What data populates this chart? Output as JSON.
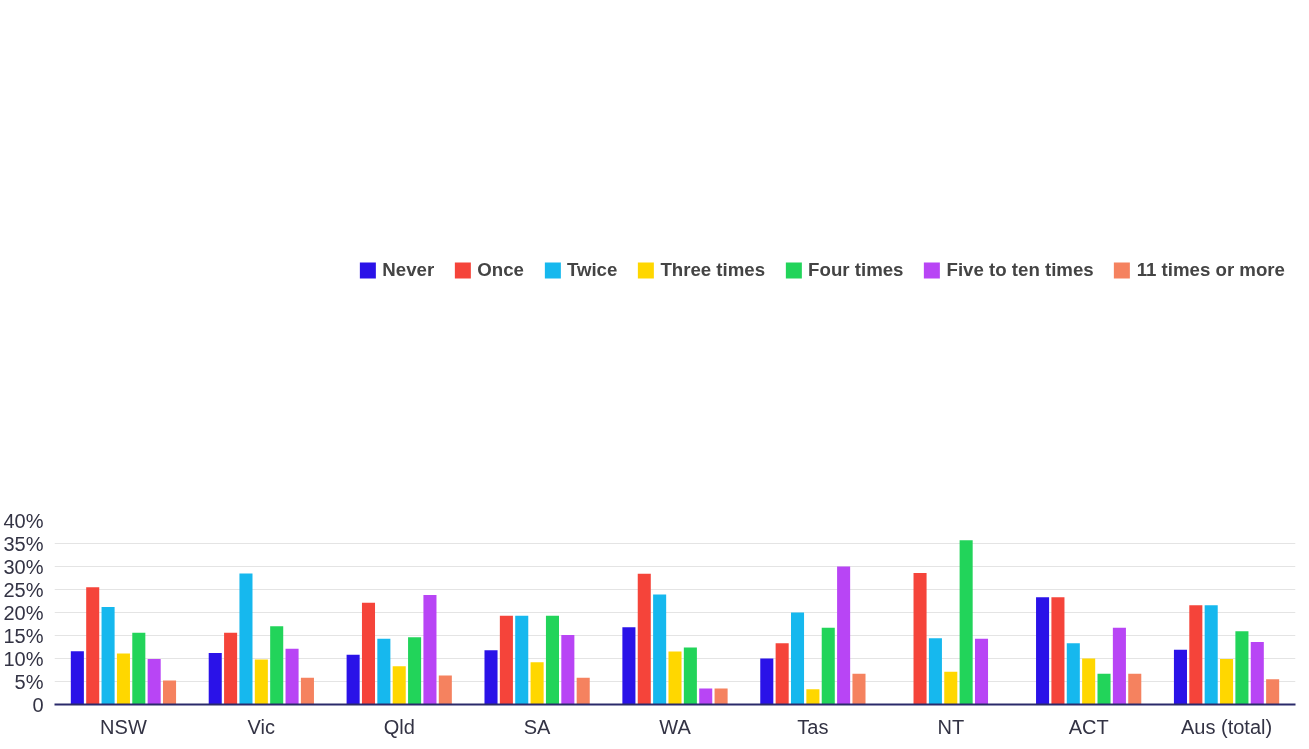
{
  "chart_data": {
    "type": "bar",
    "categories": [
      "NSW",
      "Vic",
      "Qld",
      "SA",
      "WA",
      "Tas",
      "NT",
      "ACT",
      "Aus (total)"
    ],
    "series": [
      {
        "name": "Never",
        "color": "#2a12e8",
        "values": [
          11.6,
          11.2,
          10.8,
          11.8,
          16.8,
          10.0,
          0,
          23.3,
          11.9
        ]
      },
      {
        "name": "Once",
        "color": "#f5443a",
        "values": [
          25.5,
          15.6,
          22.1,
          19.3,
          28.4,
          13.3,
          28.6,
          23.3,
          21.6
        ]
      },
      {
        "name": "Twice",
        "color": "#16b8ee",
        "values": [
          21.2,
          28.5,
          14.3,
          19.3,
          23.9,
          20.0,
          14.4,
          13.3,
          21.6
        ]
      },
      {
        "name": "Three times",
        "color": "#ffd700",
        "values": [
          11.1,
          9.8,
          8.3,
          9.2,
          11.5,
          3.3,
          7.1,
          10.0,
          9.9
        ]
      },
      {
        "name": "Four times",
        "color": "#22d45a",
        "values": [
          15.6,
          17.0,
          14.6,
          19.3,
          12.4,
          16.7,
          35.7,
          6.7,
          15.9
        ]
      },
      {
        "name": "Five to ten times",
        "color": "#b845f5",
        "values": [
          9.9,
          12.1,
          23.8,
          15.1,
          3.5,
          30.0,
          14.3,
          16.7,
          13.6
        ]
      },
      {
        "name": "11 times or more",
        "color": "#f5825f",
        "values": [
          5.2,
          5.8,
          6.3,
          5.8,
          3.5,
          6.7,
          0,
          6.7,
          5.5
        ]
      }
    ],
    "ylim": [
      0,
      40
    ],
    "yticks": [
      0,
      {
        "value": 5,
        "label": "5%"
      },
      {
        "value": 10,
        "label": "10%"
      },
      {
        "value": 15,
        "label": "15%"
      },
      {
        "value": 20,
        "label": "20%"
      },
      {
        "value": 25,
        "label": "25%"
      },
      {
        "value": 30,
        "label": "30%"
      },
      {
        "value": 35,
        "label": "35%"
      },
      {
        "value": 40,
        "label": "40%"
      }
    ],
    "grid": "y",
    "legend": "top"
  }
}
